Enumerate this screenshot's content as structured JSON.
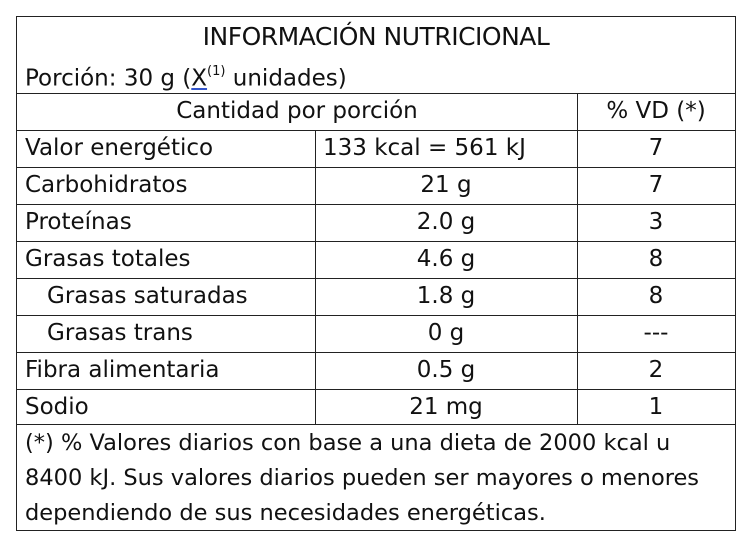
{
  "label": {
    "title": "INFORMACIÓN NUTRICIONAL",
    "portion_prefix": "Porción: 30 g (",
    "portion_x": "X",
    "portion_sup": "(1)",
    "portion_suffix": " unidades)",
    "header_quantity": "Cantidad por porción",
    "header_vd": "% VD (*)",
    "rows": [
      {
        "name": "Valor energético",
        "amount": "133 kcal = 561 kJ",
        "vd": "7"
      },
      {
        "name": "Carbohidratos",
        "amount": "21 g",
        "vd": "7"
      },
      {
        "name": "Proteínas",
        "amount": "2.0 g",
        "vd": "3"
      },
      {
        "name": "Grasas totales",
        "amount": "4.6 g",
        "vd": "8"
      },
      {
        "name": "Grasas saturadas",
        "amount": "1.8 g",
        "vd": "8"
      },
      {
        "name": "Grasas trans",
        "amount": "0 g",
        "vd": "---"
      },
      {
        "name": "Fibra alimentaria",
        "amount": "0.5 g",
        "vd": "2"
      },
      {
        "name": "Sodio",
        "amount": "21 mg",
        "vd": "1"
      }
    ],
    "footnote": "(*) % Valores diarios con base a una dieta de 2000 kcal u 8400 kJ. Sus valores diarios pueden ser mayores o menores dependiendo de sus necesidades energéticas."
  }
}
